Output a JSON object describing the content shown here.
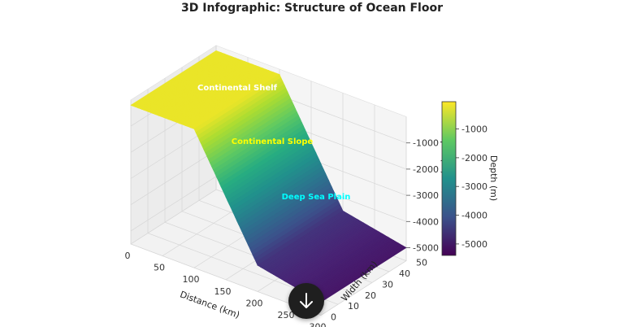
{
  "chart_data": {
    "type": "surface3d",
    "title": "3D Infographic: Structure of Ocean Floor",
    "xlabel": "Distance (km)",
    "ylabel": "Width (km)",
    "zlabel": "Depth (m)",
    "x_ticks": [
      0,
      50,
      100,
      150,
      200,
      250,
      300
    ],
    "y_ticks": [
      0,
      10,
      20,
      30,
      40,
      50
    ],
    "z_ticks": [
      -1000,
      -2000,
      -3000,
      -4000,
      -5000
    ],
    "xlim": [
      0,
      300
    ],
    "ylim": [
      0,
      50
    ],
    "zlim": [
      -5500,
      0
    ],
    "profile": {
      "x": [
        0,
        100,
        200,
        300
      ],
      "z": [
        -200,
        -200,
        -4500,
        -5000
      ]
    },
    "grid": true,
    "colormap": "viridis",
    "colorbar": {
      "label": "Depth (m)",
      "ticks": [
        -1000,
        -2000,
        -3000,
        -4000,
        -5000
      ],
      "range": [
        -5400,
        -50
      ]
    },
    "annotations": [
      {
        "text": "Continental Shelf",
        "color": "#ffffff"
      },
      {
        "text": "Continental Slope",
        "color": "#ffff00"
      },
      {
        "text": "Deep Sea Plain",
        "color": "#00ffff"
      }
    ]
  },
  "ui": {
    "scroll_button_icon": "arrow-down-icon"
  }
}
